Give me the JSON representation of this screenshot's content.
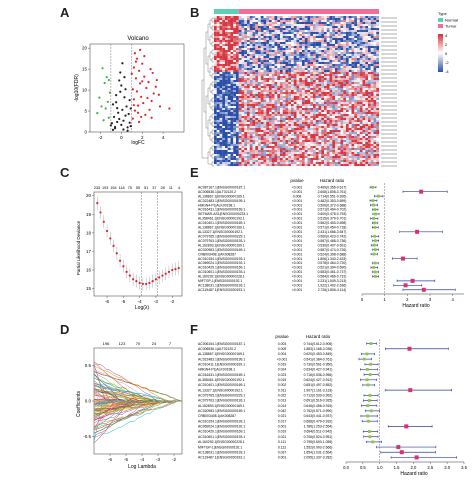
{
  "panel_labels": [
    "A",
    "B",
    "C",
    "D",
    "E",
    "F"
  ],
  "colors": {
    "up": "#e4202a",
    "down": "#3fae49",
    "ns": "#222222",
    "heat_high": "#d7303a",
    "heat_low": "#2b4fa8",
    "normal_bar": "#5fd0b7",
    "tumor_bar": "#ef6f9a",
    "forest_point": "#d7336b",
    "forest_line": "#2f3e9e",
    "forest_small": "#8dc63f",
    "lasso_dot": "#e4202a"
  },
  "heatmap": {
    "legend_title": "Type",
    "legend_items": [
      "Normal",
      "Tumor"
    ],
    "scale_ticks": [
      "4",
      "2",
      "0",
      "-2",
      "-4"
    ]
  },
  "forest_e": {
    "headers": [
      "pvalue",
      "Hazard ratio"
    ],
    "genes": [
      "AC087167.1|ENSG00000187.1",
      "AC006536.1|ALT02120.2",
      "AL138867.1|ENSG00000169.1",
      "AC022483.1|ENSG00000199.1",
      "HMGN4-P1|ALK00198.1",
      "AC016431.1|ENSG00000169.1",
      "SETMAR-AS1|ENSG00000233.1",
      "AL358461.1|ENSG00000192.1",
      "AC010401.1|ENSG00000169.1",
      "AL138867.1|ENSG00000169.1",
      "AL13327.1|ENSG00000192.1",
      "AC079765.1|ENSG00000229.1",
      "AC079763.1|ENSG00000193.1",
      "AL162893.1|ENSG00000169.1",
      "AC020983.1|ENSG00000169.1",
      "CRB003408.1|AK008287",
      "AC010154.1|ENSG00000193.1",
      "AC069024.1|ENSG00000192.1",
      "AC010429.1|ENSG00000169.1",
      "AC010601.1|ENSG00000193.1",
      "AL160292.1|ENSG00000228.1",
      "MIFTGP-1|ENSG00000192.1",
      "AC138031.1|ENSG00000193.1",
      "AC119487.1|ENSG00000193.1"
    ],
    "pvalues": [
      "<0.001",
      "<0.001",
      "0.008",
      "<0.001",
      "<0.001",
      "<0.001",
      "<0.001",
      "<0.001",
      "<0.001",
      "<0.001",
      "<0.001",
      "<0.001",
      "<0.001",
      "<0.001",
      "<0.001",
      "<0.001",
      "<0.001",
      "<0.001",
      "<0.001",
      "<0.001",
      "<0.001",
      "<0.001",
      "<0.001",
      "<0.001"
    ],
    "hr_text": [
      "0.469(0.356-0.617)",
      "2.608(1.808-3.761)",
      "0.714(0.551-0.926)",
      "0.482(0.353-0.659)",
      "0.506(0.372-0.688)",
      "0.571(0.464-0.702)",
      "0.600(0.478-0.753)",
      "0.515(0.379-0.701)",
      "0.562(0.453-0.698)",
      "0.571(0.454-0.718)",
      "2.431(1.666-3.547)",
      "0.560(0.423-0.742)",
      "0.587(0.468-0.736)",
      "0.530(0.407-0.691)",
      "0.587(0.474-0.726)",
      "0.524(0.398-0.688)",
      "1.806(1.340-2.433)",
      "0.578(0.464-0.720)",
      "0.521(0.394-0.690)",
      "0.583(0.461-0.737)",
      "0.584(0.466-0.731)",
      "2.231(1.549-3.213)",
      "1.922(1.402-2.636)",
      "2.726(1.806-4.114)"
    ],
    "ticks": [
      "0",
      "1",
      "2",
      "3",
      "4"
    ],
    "xlabel": "Hazard ratio"
  },
  "forest_f": {
    "headers": [
      "pvalue",
      "Hazard ratio"
    ],
    "genes": [
      "AC006154.1|ENSG00000187.1",
      "AC006536.1|ALT02120.2",
      "AL138867.1|ENSG00000169.1",
      "AC022483.1|ENSG00000199.1",
      "AC010411.1|ENSG00000169.1",
      "HMGN4-P1|ALK00198.1",
      "AC016431.1|ENSG00000169.1",
      "AL358461.1|ENSG00000192.1",
      "AC010401.1|ENSG00000169.1",
      "AL13327.1|ENSG00000192.1",
      "AC079765.1|ENSG00000229.1",
      "AC079763.1|ENSG00000193.1",
      "AL162893.1|ENSG00000169.1",
      "AC020983.1|ENSG00000169.1",
      "CRB003408.1|AK008287",
      "AC010154.1|ENSG00000193.1",
      "AC069024.1|ENSG00000192.1",
      "AC010429.1|ENSG00000169.1",
      "AC010601.1|ENSG00000193.1",
      "AL160292.1|ENSG00000228.1",
      "MIFTGP-1|ENSG00000192.1",
      "AC138031.1|ENSG00000193.1",
      "AC119487.1|ENSG00000193.1"
    ],
    "pvalues": [
      "0.003",
      "0.009",
      "0.004",
      "<0.001",
      "0.019",
      "0.024",
      "0.023",
      "0.015",
      "0.002",
      "0.011",
      "0.022",
      "0.013",
      "0.014",
      "0.042",
      "0.021",
      "0.017",
      "0.001",
      "0.019",
      "0.021",
      "0.111",
      "0.112",
      "0.037",
      "0.001"
    ],
    "hr_text": [
      "0.744(0.612-0.906)",
      "1.883(1.168-3.036)",
      "0.620(0.453-0.849)",
      "0.541(0.384-0.761)",
      "0.730(0.561-0.950)",
      "0.634(0.427-0.941)",
      "0.716(0.536-0.956)",
      "0.624(0.427-0.912)",
      "0.651(0.497-0.852)",
      "1.907(1.161-3.133)",
      "0.712(0.533-0.952)",
      "0.691(0.516-0.925)",
      "0.646(0.456-0.915)",
      "0.752(0.571-0.990)",
      "0.643(0.441-0.937)",
      "0.668(0.479-0.932)",
      "1.789(1.253-2.554)",
      "0.694(0.511-0.942)",
      "0.706(0.524-0.951)",
      "0.795(0.600-1.055)",
      "1.552(0.903-2.666)",
      "1.654(1.031-2.654)",
      "2.095(1.337-3.282)"
    ],
    "ticks": [
      "0.0",
      "0.5",
      "1.0",
      "1.5",
      "2.0",
      "2.5",
      "3.0",
      "3.5"
    ],
    "xlabel": "Hazard ratio"
  },
  "chart_data": [
    {
      "panel": "A",
      "type": "scatter",
      "title": "Volcano",
      "xlabel": "logFC",
      "ylabel": "-log10(FDR)",
      "xlim": [
        -3,
        6
      ],
      "xticks": [
        "-2",
        "0",
        "2",
        "4"
      ],
      "yticks": [
        "0",
        "5",
        "10",
        "15",
        "20"
      ],
      "series": [
        {
          "name": "up",
          "points": [
            [
              1.1,
              3.2
            ],
            [
              1.3,
              5.1
            ],
            [
              1.6,
              6.3
            ],
            [
              1.2,
              7.8
            ],
            [
              1.9,
              8.4
            ],
            [
              2.1,
              6.9
            ],
            [
              1.5,
              9.7
            ],
            [
              2.4,
              10.5
            ],
            [
              1.8,
              11.6
            ],
            [
              2.9,
              7.4
            ],
            [
              1.4,
              12.8
            ],
            [
              2.2,
              13.2
            ],
            [
              3.1,
              9.2
            ],
            [
              1.7,
              14.6
            ],
            [
              2.6,
              11.9
            ],
            [
              1.2,
              15.4
            ],
            [
              2.0,
              16.3
            ],
            [
              3.4,
              12.4
            ],
            [
              1.5,
              17.5
            ],
            [
              2.8,
              15.0
            ],
            [
              1.3,
              18.8
            ],
            [
              2.3,
              4.1
            ],
            [
              1.9,
              3.6
            ],
            [
              3.7,
              6.1
            ],
            [
              4.6,
              5.6
            ],
            [
              1.1,
              10.2
            ],
            [
              2.5,
              8.1
            ],
            [
              3.0,
              14.1
            ],
            [
              1.6,
              4.6
            ],
            [
              2.7,
              5.3
            ],
            [
              1.2,
              6.4
            ],
            [
              2.0,
              12.1
            ],
            [
              1.4,
              16.8
            ],
            [
              3.3,
              10.8
            ],
            [
              2.2,
              18.1
            ],
            [
              1.8,
              19.6
            ],
            [
              1.0,
              13.9
            ],
            [
              2.9,
              3.4
            ],
            [
              1.7,
              2.4
            ],
            [
              3.6,
              8.9
            ]
          ]
        },
        {
          "name": "down",
          "points": [
            [
              -1.2,
              3.4
            ],
            [
              -1.5,
              5.6
            ],
            [
              -1.3,
              7.2
            ],
            [
              -1.9,
              6.1
            ],
            [
              -1.1,
              9.4
            ],
            [
              -2.1,
              8.2
            ],
            [
              -1.6,
              11.7
            ],
            [
              -1.4,
              13.1
            ],
            [
              -2.3,
              4.5
            ],
            [
              -1.8,
              15.2
            ],
            [
              -1.2,
              12.4
            ],
            [
              -1.7,
              2.8
            ]
          ]
        },
        {
          "name": "ns",
          "points": [
            [
              -0.8,
              0.5
            ],
            [
              -0.6,
              1.2
            ],
            [
              -0.4,
              2.4
            ],
            [
              -0.2,
              3.1
            ],
            [
              0.0,
              1.7
            ],
            [
              0.2,
              2.7
            ],
            [
              0.4,
              3.9
            ],
            [
              0.6,
              1.1
            ],
            [
              0.8,
              2.2
            ],
            [
              -0.7,
              3.6
            ],
            [
              -0.3,
              4.6
            ],
            [
              0.1,
              5.3
            ],
            [
              0.5,
              6.1
            ],
            [
              -0.5,
              7.1
            ],
            [
              0.3,
              8.3
            ],
            [
              -0.1,
              9.6
            ],
            [
              0.7,
              4.3
            ],
            [
              0.9,
              5.6
            ],
            [
              -0.9,
              2.1
            ],
            [
              0.0,
              11.1
            ],
            [
              -0.2,
              12.3
            ],
            [
              0.2,
              0.6
            ],
            [
              -0.6,
              0.9
            ],
            [
              0.6,
              0.3
            ],
            [
              -0.4,
              5.7
            ],
            [
              0.4,
              10.2
            ],
            [
              -0.8,
              6.6
            ],
            [
              0.8,
              7.6
            ],
            [
              -0.1,
              14.2
            ],
            [
              0.3,
              13.1
            ],
            [
              -1.0,
              1.6
            ],
            [
              0.9,
              1.4
            ],
            [
              -0.5,
              8.8
            ],
            [
              0.1,
              16.4
            ]
          ]
        }
      ]
    },
    {
      "panel": "C",
      "type": "scatter",
      "xlabel": "Log(λ)",
      "ylabel": "Partial Likelihood Deviance",
      "xticks": [
        "-6",
        "-5",
        "-4",
        "-3",
        "-2"
      ],
      "yticks": [
        "15",
        "16",
        "17",
        "18",
        "19",
        "20"
      ],
      "top_counts": [
        "233",
        "193",
        "154",
        "118",
        "75",
        "55",
        "51",
        "37",
        "28",
        "11",
        "4"
      ],
      "x": [
        -6.6,
        -6.4,
        -6.2,
        -6.0,
        -5.8,
        -5.6,
        -5.4,
        -5.2,
        -5.0,
        -4.8,
        -4.6,
        -4.4,
        -4.2,
        -4.0,
        -3.8,
        -3.6,
        -3.4,
        -3.2,
        -3.0,
        -2.8,
        -2.6,
        -2.4,
        -2.2,
        -2.0,
        -1.8,
        -1.6
      ],
      "y": [
        19.6,
        19.1,
        18.6,
        18.1,
        17.7,
        17.3,
        16.9,
        16.5,
        16.2,
        15.9,
        15.7,
        15.5,
        15.4,
        15.3,
        15.25,
        15.25,
        15.3,
        15.4,
        15.5,
        15.6,
        15.7,
        15.8,
        15.9,
        16.0,
        16.05,
        16.1
      ],
      "vlines": [
        -3.9,
        -2.9
      ]
    },
    {
      "panel": "D",
      "type": "line",
      "xlabel": "Log Lambda",
      "ylabel": "Coefficients",
      "xticks": [
        "-6",
        "-5",
        "-4",
        "-3",
        "-2"
      ],
      "yticks": [
        "-0.5",
        "0.0",
        "0.5"
      ],
      "top_counts": [
        "196",
        "123",
        "70",
        "24",
        "7"
      ],
      "note": "LASSO coefficient paths (many series converging to 0)"
    },
    {
      "panel": "E",
      "type": "forest",
      "x": "hazard ratio",
      "hr": [
        0.469,
        2.608,
        0.714,
        0.482,
        0.506,
        0.571,
        0.6,
        0.515,
        0.562,
        0.571,
        2.431,
        0.56,
        0.587,
        0.53,
        0.587,
        0.524,
        1.806,
        0.578,
        0.521,
        0.583,
        0.584,
        2.231,
        1.922,
        2.726
      ],
      "lo": [
        0.356,
        1.808,
        0.551,
        0.353,
        0.372,
        0.464,
        0.478,
        0.379,
        0.453,
        0.454,
        1.666,
        0.423,
        0.468,
        0.407,
        0.474,
        0.398,
        1.34,
        0.464,
        0.394,
        0.461,
        0.466,
        1.549,
        1.402,
        1.806
      ],
      "hi": [
        0.617,
        3.761,
        0.926,
        0.659,
        0.688,
        0.702,
        0.753,
        0.701,
        0.698,
        0.718,
        3.547,
        0.742,
        0.736,
        0.691,
        0.726,
        0.688,
        2.433,
        0.72,
        0.69,
        0.737,
        0.731,
        3.213,
        2.636,
        4.114
      ],
      "xlim": [
        0,
        4.5
      ]
    },
    {
      "panel": "F",
      "type": "forest",
      "x": "hazard ratio",
      "hr": [
        0.744,
        1.883,
        0.62,
        0.541,
        0.73,
        0.634,
        0.716,
        0.624,
        0.651,
        1.907,
        0.712,
        0.691,
        0.646,
        0.752,
        0.643,
        0.668,
        1.789,
        0.694,
        0.706,
        0.795,
        1.552,
        1.654,
        2.095
      ],
      "lo": [
        0.612,
        1.168,
        0.453,
        0.384,
        0.561,
        0.427,
        0.536,
        0.427,
        0.497,
        1.161,
        0.533,
        0.516,
        0.456,
        0.571,
        0.441,
        0.479,
        1.253,
        0.511,
        0.524,
        0.6,
        0.903,
        1.031,
        1.337
      ],
      "hi": [
        0.906,
        3.036,
        0.849,
        0.761,
        0.95,
        0.941,
        0.956,
        0.912,
        0.852,
        3.133,
        0.952,
        0.925,
        0.915,
        0.99,
        0.937,
        0.932,
        2.554,
        0.942,
        0.951,
        1.055,
        2.666,
        2.654,
        3.282
      ],
      "xlim": [
        0,
        3.5
      ]
    }
  ]
}
